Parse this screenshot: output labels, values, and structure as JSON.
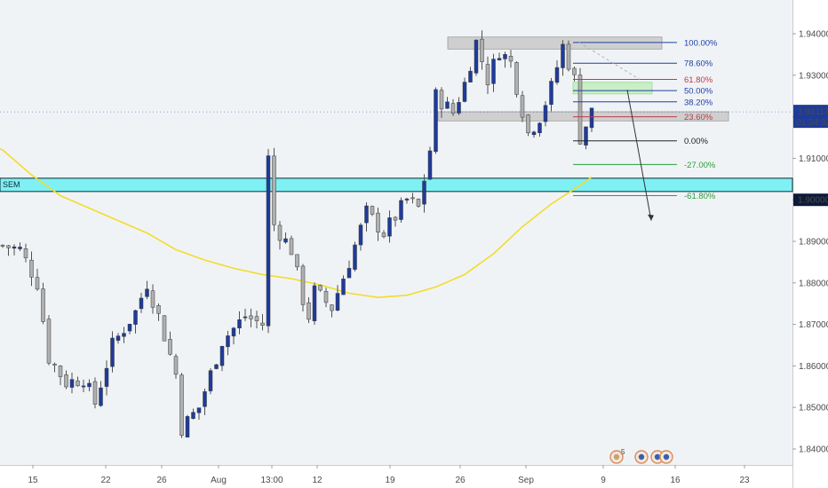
{
  "chart_data": {
    "type": "candlestick",
    "title": "",
    "ylim": [
      1.837,
      1.944
    ],
    "x_tick_labels": [
      "15",
      "22",
      "26",
      "Aug",
      "13:00",
      "12",
      "19",
      "26",
      "Sep",
      "9",
      "16",
      "23"
    ],
    "y_tick_labels": [
      "1.94000",
      "1.93000",
      "1.92000",
      "1.91000",
      "1.90000",
      "1.89000",
      "1.88000",
      "1.87000",
      "1.86000",
      "1.85000",
      "1.84000"
    ],
    "y_tick_values": [
      1.94,
      1.93,
      1.92,
      1.91,
      1.9,
      1.89,
      1.88,
      1.87,
      1.86,
      1.85,
      1.84
    ],
    "last_price_label": "1.92117",
    "last_price": 1.92117,
    "countdown_label": "01:34:32",
    "level_label": "1.90000",
    "level_price": 1.9,
    "zone_label": "SEM",
    "zone": {
      "low": 1.902,
      "high": 1.9052
    },
    "price_path": [
      [
        0,
        1.889
      ],
      [
        3,
        1.888
      ],
      [
        6,
        1.88
      ],
      [
        8,
        1.862
      ],
      [
        11,
        1.856
      ],
      [
        14,
        1.857
      ],
      [
        16,
        1.851
      ],
      [
        19,
        1.865
      ],
      [
        23,
        1.873
      ],
      [
        25,
        1.88
      ],
      [
        27,
        1.872
      ],
      [
        30,
        1.858
      ],
      [
        31,
        1.845
      ],
      [
        34,
        1.85
      ],
      [
        38,
        1.866
      ],
      [
        42,
        1.872
      ],
      [
        45,
        1.87
      ],
      [
        46,
        1.91
      ],
      [
        47,
        1.894
      ],
      [
        50,
        1.888
      ],
      [
        52,
        1.876
      ],
      [
        53,
        1.872
      ],
      [
        54,
        1.878
      ],
      [
        57,
        1.874
      ],
      [
        60,
        1.885
      ],
      [
        63,
        1.897
      ],
      [
        66,
        1.892
      ],
      [
        68,
        1.896
      ],
      [
        70,
        1.9
      ],
      [
        72,
        1.898
      ],
      [
        74,
        1.912
      ],
      [
        75,
        1.925
      ],
      [
        78,
        1.921
      ],
      [
        80,
        1.928
      ],
      [
        82,
        1.938
      ],
      [
        84,
        1.929
      ],
      [
        86,
        1.936
      ],
      [
        88,
        1.933
      ],
      [
        91,
        1.916
      ],
      [
        93,
        1.92
      ],
      [
        95,
        1.927
      ],
      [
        97,
        1.937
      ],
      [
        99,
        1.929
      ],
      [
        100,
        1.915
      ],
      [
        101,
        1.918
      ],
      [
        102,
        1.9212
      ]
    ],
    "moving_average": [
      [
        -6,
        1.915
      ],
      [
        0,
        1.912
      ],
      [
        5,
        1.906
      ],
      [
        10,
        1.901
      ],
      [
        15,
        1.898
      ],
      [
        20,
        1.895
      ],
      [
        25,
        1.892
      ],
      [
        30,
        1.888
      ],
      [
        35,
        1.8855
      ],
      [
        40,
        1.8835
      ],
      [
        45,
        1.882
      ],
      [
        50,
        1.881
      ],
      [
        55,
        1.8795
      ],
      [
        60,
        1.8775
      ],
      [
        65,
        1.8765
      ],
      [
        70,
        1.877
      ],
      [
        75,
        1.879
      ],
      [
        80,
        1.882
      ],
      [
        85,
        1.887
      ],
      [
        90,
        1.8935
      ],
      [
        95,
        1.899
      ],
      [
        100,
        1.9035
      ],
      [
        102,
        1.9055
      ]
    ],
    "fib_levels": [
      {
        "label": "100.00%",
        "price": 1.9379,
        "color": "#1d3fa8"
      },
      {
        "label": "78.60%",
        "price": 1.9329,
        "color": "#1d3fa8"
      },
      {
        "label": "61.80%",
        "price": 1.929,
        "color": "#c0394b"
      },
      {
        "label": "50.00%",
        "price": 1.9263,
        "color": "#1d3fa8"
      },
      {
        "label": "38.20%",
        "price": 1.9236,
        "color": "#1d3fa8"
      },
      {
        "label": "23.60%",
        "price": 1.92,
        "color": "#c0394b"
      },
      {
        "label": "0.00%",
        "price": 1.9142,
        "color": "#222222"
      },
      {
        "label": "-27.00%",
        "price": 1.9085,
        "color": "#27a03a"
      },
      {
        "label": "-61.80%",
        "price": 1.901,
        "color": "#27a03a"
      }
    ],
    "resistance_zone": {
      "low": 1.9363,
      "high": 1.9392
    },
    "support_zone": {
      "low": 1.919,
      "high": 1.9212
    },
    "golden_zone": {
      "low": 1.9255,
      "high": 1.9283
    },
    "projection_arrow": {
      "from": 1.9265,
      "to": 1.895
    },
    "colors": {
      "bull_candle": "#1f3b9a",
      "bear_candle": "#b0b0b0",
      "moving_average": "#f2dc2e",
      "zone_fill": "#7ff0f3",
      "zone_edge": "#0b2a35",
      "price_label_bg": "#1f3b9a",
      "level_label_bg": "#0f1a3a",
      "background": "#f0f3f5"
    },
    "bottom_icons": [
      "5",
      "chart-badge-icon",
      "globe-icon",
      "globe-icon",
      "calendar-icon"
    ]
  }
}
